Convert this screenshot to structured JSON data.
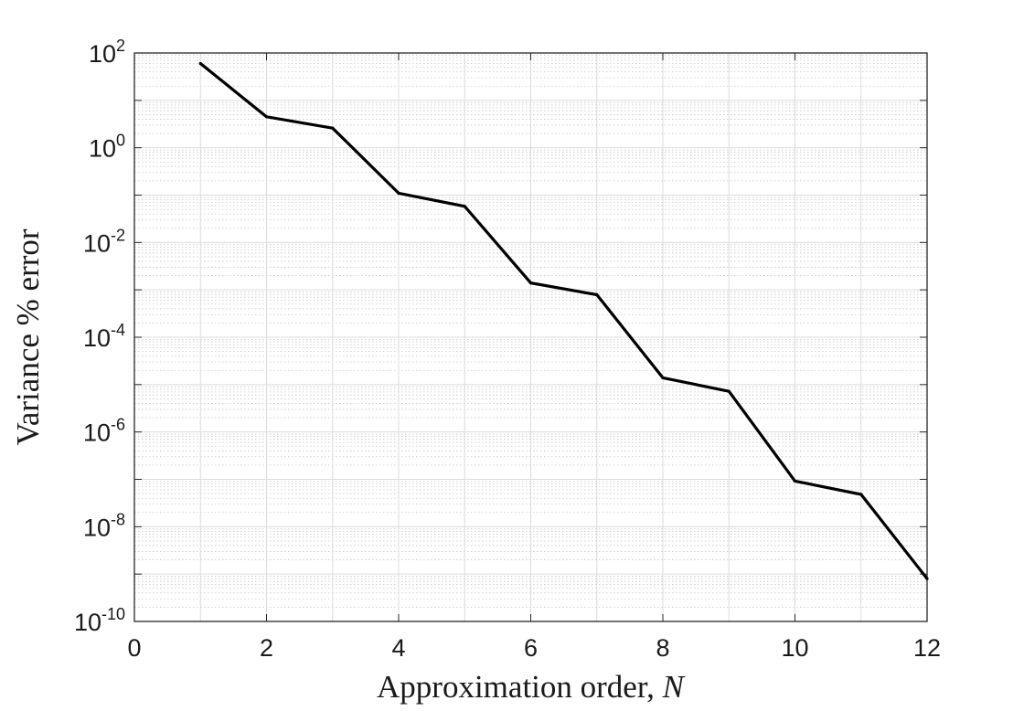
{
  "chart_data": {
    "type": "line",
    "title": "",
    "xlabel": "Approximation order, ",
    "xlabel_var": "N",
    "ylabel": "Variance % error",
    "xlim": [
      0,
      12
    ],
    "ylim": [
      1e-10,
      100
    ],
    "yscale": "log",
    "grid": true,
    "minor_grid": true,
    "x_ticks": [
      0,
      2,
      4,
      6,
      8,
      10,
      12
    ],
    "x_tick_labels": [
      "0",
      "2",
      "4",
      "6",
      "8",
      "10",
      "12"
    ],
    "y_ticks": [
      {
        "base": "10",
        "exp": "2",
        "value": 100
      },
      {
        "base": "10",
        "exp": "0",
        "value": 1
      },
      {
        "base": "10",
        "exp": "-2",
        "value": 0.01
      },
      {
        "base": "10",
        "exp": "-4",
        "value": 0.0001
      },
      {
        "base": "10",
        "exp": "-6",
        "value": 1e-06
      },
      {
        "base": "10",
        "exp": "-8",
        "value": 1e-08
      },
      {
        "base": "10",
        "exp": "-10",
        "value": 1e-10
      }
    ],
    "series": [
      {
        "color": "#000000",
        "x": [
          1,
          2,
          3,
          4,
          5,
          6,
          7,
          8,
          9,
          10,
          11,
          12
        ],
        "values": [
          60,
          4.5,
          2.6,
          0.11,
          0.058,
          0.0014,
          0.00079,
          1.39e-05,
          7.2e-06,
          9.2e-08,
          4.8e-08,
          8e-10
        ]
      }
    ]
  }
}
